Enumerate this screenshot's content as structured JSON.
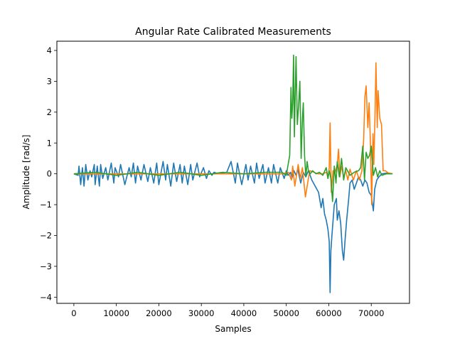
{
  "chart_data": {
    "type": "line",
    "title": "Angular Rate Calibrated Measurements",
    "xlabel": "Samples",
    "ylabel": "Amplitude [rad/s]",
    "xlim": [
      -4000,
      79000
    ],
    "ylim": [
      -4.2,
      4.3
    ],
    "xticks": [
      0,
      10000,
      20000,
      30000,
      40000,
      50000,
      60000,
      70000
    ],
    "yticks": [
      -4,
      -3,
      -2,
      -1,
      0,
      1,
      2,
      3,
      4
    ],
    "grid": false,
    "legend": "none",
    "series": [
      {
        "color": "#1f77b4",
        "x": [
          0,
          1000,
          1200,
          1600,
          2000,
          2400,
          2800,
          3300,
          3800,
          4200,
          4800,
          5000,
          5500,
          6000,
          6300,
          6800,
          7500,
          8000,
          8800,
          9400,
          9700,
          10500,
          11000,
          12000,
          13000,
          13500,
          14000,
          14500,
          15000,
          15800,
          16500,
          17400,
          18000,
          18800,
          19500,
          20000,
          21000,
          21600,
          22000,
          22800,
          23500,
          24200,
          25000,
          25500,
          26000,
          26800,
          27500,
          28000,
          29000,
          29600,
          30500,
          31200,
          31800,
          32500,
          33000,
          34000,
          36000,
          37000,
          38000,
          38500,
          39500,
          40500,
          41000,
          41600,
          42500,
          43000,
          43600,
          44500,
          45000,
          45800,
          46500,
          47000,
          48000,
          48600,
          49500,
          50000,
          50400,
          51000,
          51300,
          51800,
          52300,
          52700,
          53400,
          54000,
          54600,
          55200,
          56000,
          56800,
          57600,
          58200,
          58600,
          59000,
          59400,
          59800,
          60100,
          60300,
          60500,
          60800,
          61300,
          61800,
          62000,
          62400,
          62800,
          63200,
          63500,
          63800,
          64200,
          64700,
          65000,
          65500,
          66000,
          66500,
          67000,
          67500,
          68000,
          68500,
          69000,
          69500,
          70000,
          70500,
          70800,
          71300,
          71800,
          72500,
          73500,
          75000
        ],
        "y": [
          0,
          -0.05,
          0.25,
          -0.35,
          0.2,
          -0.4,
          0.3,
          -0.2,
          0.1,
          -0.1,
          0.3,
          -0.35,
          0.25,
          -0.4,
          0.3,
          -0.15,
          0.2,
          -0.2,
          0.35,
          -0.3,
          0.2,
          -0.1,
          0.3,
          -0.35,
          0.2,
          -0.1,
          0.35,
          -0.3,
          0.25,
          -0.2,
          0.3,
          -0.25,
          0.2,
          -0.3,
          0.35,
          -0.35,
          0.4,
          -0.2,
          0.3,
          -0.4,
          0.35,
          -0.25,
          0.3,
          -0.3,
          0.25,
          -0.35,
          0.3,
          -0.2,
          0.35,
          -0.1,
          0.2,
          -0.15,
          0.1,
          -0.05,
          0.05,
          0,
          0.05,
          0.4,
          -0.3,
          0.35,
          -0.35,
          0.3,
          -0.2,
          0.25,
          -0.3,
          0.35,
          -0.15,
          0.3,
          -0.3,
          0.2,
          -0.3,
          0.3,
          -0.3,
          0.2,
          -0.15,
          0.1,
          -0.05,
          0.05,
          -0.15,
          0.1,
          -0.05,
          0.15,
          -0.3,
          0.05,
          -0.1,
          0.1,
          -0.2,
          -0.4,
          -0.6,
          -1.1,
          -0.8,
          -1.3,
          -1.5,
          -1.8,
          -2.2,
          -3.85,
          -2.5,
          -1.9,
          -1.0,
          -0.8,
          -1.5,
          -1.2,
          -1.6,
          -2.5,
          -2.8,
          -2.2,
          -1.5,
          -0.8,
          -0.3,
          -0.2,
          -0.5,
          -0.3,
          -0.1,
          -0.2,
          -0.4,
          -0.2,
          -0.3,
          -0.6,
          -0.7,
          -1.2,
          -0.5,
          -0.2,
          -0.1,
          0.0,
          0.02,
          0.0
        ]
      },
      {
        "color": "#ff7f0e",
        "x": [
          0,
          10000,
          20000,
          30000,
          40000,
          49000,
          50500,
          51200,
          51500,
          52000,
          52800,
          53300,
          53800,
          54500,
          55500,
          56500,
          57500,
          58500,
          59500,
          59800,
          60100,
          60300,
          60600,
          61000,
          61500,
          62000,
          62300,
          62600,
          63000,
          63500,
          64000,
          64500,
          65000,
          65800,
          66500,
          67200,
          67800,
          68200,
          68500,
          68800,
          69200,
          69500,
          69800,
          70100,
          70400,
          70600,
          70900,
          71100,
          71400,
          71600,
          72000,
          72400,
          72800,
          73300,
          74000,
          75000
        ],
        "y": [
          0,
          0,
          0,
          0,
          0,
          0,
          0.05,
          -0.2,
          0.25,
          -0.4,
          0.3,
          -0.15,
          0.2,
          -0.75,
          0.1,
          0.05,
          0.0,
          0.0,
          0.05,
          -0.15,
          0.2,
          1.65,
          -0.6,
          0.1,
          0.05,
          0.3,
          0.8,
          -0.1,
          0.25,
          -0.1,
          0.1,
          -0.2,
          0.15,
          -0.2,
          0.1,
          -0.2,
          0.1,
          1.1,
          2.5,
          2.85,
          1.5,
          2.3,
          1.0,
          -1.0,
          1.3,
          0.3,
          2.0,
          3.6,
          1.5,
          2.7,
          1.8,
          1.6,
          0.1,
          0.1,
          0.03,
          0.0
        ]
      },
      {
        "color": "#2ca02c",
        "x": [
          0,
          5000,
          10000,
          15000,
          20000,
          25000,
          30000,
          35000,
          40000,
          45000,
          49000,
          50000,
          50800,
          51100,
          51300,
          51500,
          51700,
          51900,
          52100,
          52300,
          52600,
          52900,
          53200,
          53500,
          53800,
          54000,
          54300,
          54600,
          54900,
          55200,
          55600,
          56200,
          57000,
          57800,
          58600,
          59400,
          59800,
          60100,
          60500,
          60900,
          61300,
          61700,
          62000,
          62500,
          63000,
          63500,
          64000,
          65000,
          66000,
          67000,
          67500,
          68000,
          68400,
          68800,
          69200,
          69600,
          70000,
          70500,
          71000,
          71500,
          72000,
          72500,
          73500,
          75000
        ],
        "y": [
          0.0,
          0.05,
          -0.05,
          0.05,
          -0.05,
          0.05,
          -0.05,
          0.05,
          0.0,
          0.05,
          0.05,
          -0.05,
          0.6,
          2.8,
          1.8,
          2.3,
          3.85,
          1.2,
          2.5,
          3.8,
          1.6,
          2.2,
          3.0,
          0.5,
          1.8,
          2.3,
          0.6,
          -0.1,
          0.4,
          0.1,
          0.0,
          0.1,
          0.0,
          0.05,
          -0.05,
          0.2,
          -0.15,
          0.1,
          -0.15,
          -0.9,
          0.25,
          -0.3,
          0.4,
          -0.1,
          0.5,
          -0.2,
          0.2,
          -0.05,
          0.05,
          0.1,
          0.2,
          0.9,
          -0.2,
          0.7,
          0.5,
          0.6,
          0.9,
          -0.05,
          0.2,
          -0.1,
          0.1,
          -0.05,
          0.0,
          0.0
        ]
      }
    ]
  }
}
